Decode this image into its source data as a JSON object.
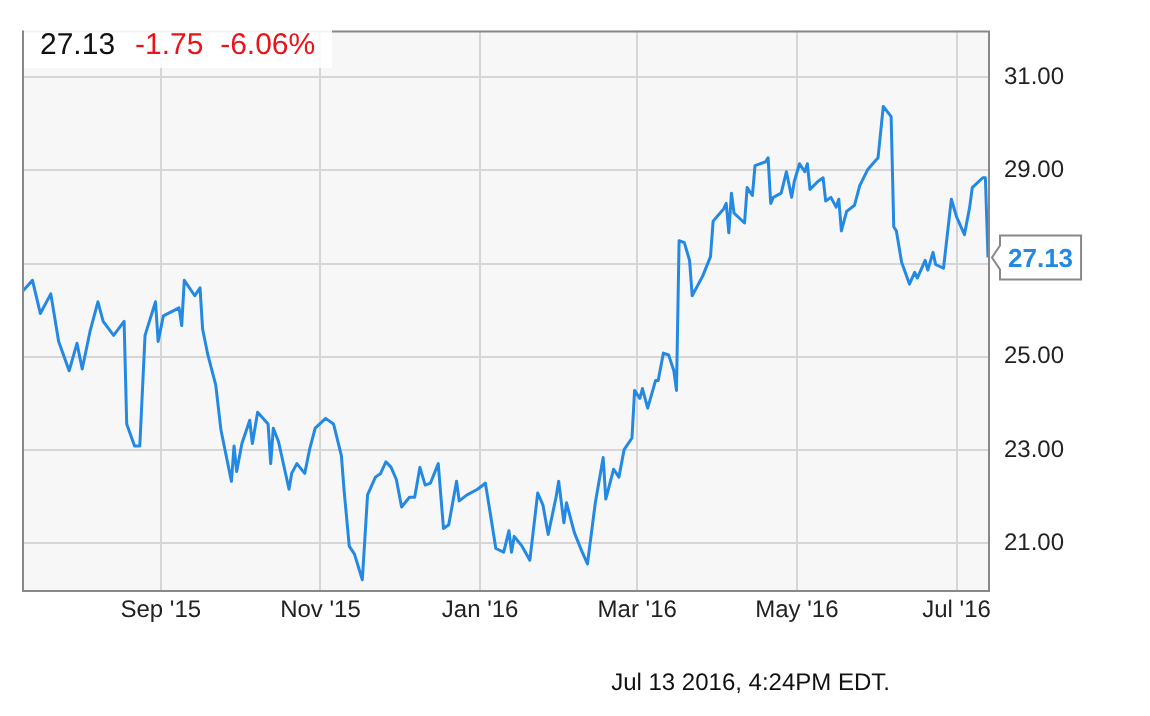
{
  "chart_data": {
    "type": "line",
    "title": "27.13",
    "subtitle": "-1.75  -6.06%",
    "marker": "none",
    "grid": true,
    "x": [
      "2015-07-10",
      "2015-07-14",
      "2015-07-17",
      "2015-07-21",
      "2015-07-24",
      "2015-07-28",
      "2015-07-31",
      "2015-08-02",
      "2015-08-05",
      "2015-08-08",
      "2015-08-10",
      "2015-08-14",
      "2015-08-18",
      "2015-08-19",
      "2015-08-22",
      "2015-08-24",
      "2015-08-26",
      "2015-08-30",
      "2015-08-31",
      "2015-09-02",
      "2015-09-08",
      "2015-09-09",
      "2015-09-10",
      "2015-09-14",
      "2015-09-16",
      "2015-09-17",
      "2015-09-19",
      "2015-09-22",
      "2015-09-24",
      "2015-09-28",
      "2015-09-29",
      "2015-09-30",
      "2015-10-02",
      "2015-10-05",
      "2015-10-06",
      "2015-10-08",
      "2015-10-12",
      "2015-10-13",
      "2015-10-14",
      "2015-10-16",
      "2015-10-20",
      "2015-10-21",
      "2015-10-23",
      "2015-10-26",
      "2015-10-28",
      "2015-10-30",
      "2015-11-03",
      "2015-11-06",
      "2015-11-09",
      "2015-11-10",
      "2015-11-12",
      "2015-11-14",
      "2015-11-17",
      "2015-11-19",
      "2015-11-22",
      "2015-11-24",
      "2015-11-26",
      "2015-11-28",
      "2015-11-30",
      "2015-12-02",
      "2015-12-05",
      "2015-12-07",
      "2015-12-09",
      "2015-12-11",
      "2015-12-13",
      "2015-12-16",
      "2015-12-18",
      "2015-12-20",
      "2015-12-23",
      "2015-12-24",
      "2015-12-27",
      "2015-12-31",
      "2016-01-03",
      "2016-01-04",
      "2016-01-07",
      "2016-01-10",
      "2016-01-12",
      "2016-01-13",
      "2016-01-14",
      "2016-01-17",
      "2016-01-20",
      "2016-01-23",
      "2016-01-25",
      "2016-01-27",
      "2016-01-30",
      "2016-01-31",
      "2016-02-02",
      "2016-02-03",
      "2016-02-05",
      "2016-02-06",
      "2016-02-09",
      "2016-02-11",
      "2016-02-14",
      "2016-02-17",
      "2016-02-18",
      "2016-02-21",
      "2016-02-23",
      "2016-02-25",
      "2016-02-28",
      "2016-02-29",
      "2016-03-02",
      "2016-03-03",
      "2016-03-05",
      "2016-03-08",
      "2016-03-09",
      "2016-03-11",
      "2016-03-13",
      "2016-03-15",
      "2016-03-16",
      "2016-03-17",
      "2016-03-19",
      "2016-03-21",
      "2016-03-22",
      "2016-03-26",
      "2016-03-29",
      "2016-03-30",
      "2016-04-03",
      "2016-04-04",
      "2016-04-05",
      "2016-04-06",
      "2016-04-07",
      "2016-04-11",
      "2016-04-12",
      "2016-04-14",
      "2016-04-15",
      "2016-04-19",
      "2016-04-20",
      "2016-04-21",
      "2016-04-22",
      "2016-04-25",
      "2016-04-27",
      "2016-04-29",
      "2016-04-30",
      "2016-05-02",
      "2016-05-04",
      "2016-05-05",
      "2016-05-06",
      "2016-05-09",
      "2016-05-11",
      "2016-05-12",
      "2016-05-14",
      "2016-05-16",
      "2016-05-17",
      "2016-05-18",
      "2016-05-20",
      "2016-05-23",
      "2016-05-25",
      "2016-05-28",
      "2016-06-01",
      "2016-06-03",
      "2016-06-06",
      "2016-06-07",
      "2016-06-08",
      "2016-06-10",
      "2016-06-13",
      "2016-06-15",
      "2016-06-16",
      "2016-06-19",
      "2016-06-20",
      "2016-06-22",
      "2016-06-23",
      "2016-06-26",
      "2016-06-29",
      "2016-07-01",
      "2016-07-04",
      "2016-07-06",
      "2016-07-07",
      "2016-07-11",
      "2016-07-12",
      "2016-07-13"
    ],
    "series": [
      {
        "color": "#2389e3",
        "values": [
          26.39,
          26.64,
          25.93,
          26.35,
          25.33,
          24.7,
          25.29,
          24.74,
          25.55,
          26.18,
          25.76,
          25.46,
          25.76,
          23.56,
          23.09,
          23.09,
          25.46,
          26.18,
          25.33,
          25.88,
          26.05,
          25.67,
          26.64,
          26.31,
          26.48,
          25.59,
          25.04,
          24.4,
          23.43,
          22.33,
          23.09,
          22.54,
          23.14,
          23.64,
          23.14,
          23.81,
          23.56,
          22.71,
          23.47,
          23.18,
          22.16,
          22.5,
          22.71,
          22.5,
          23.05,
          23.47,
          23.68,
          23.56,
          22.88,
          22.16,
          20.94,
          20.77,
          20.22,
          22.04,
          22.42,
          22.5,
          22.75,
          22.63,
          22.37,
          21.78,
          21.99,
          21.99,
          22.63,
          22.25,
          22.29,
          22.71,
          21.32,
          21.4,
          22.33,
          21.91,
          22.04,
          22.16,
          22.29,
          21.95,
          20.89,
          20.81,
          21.27,
          20.81,
          21.15,
          20.94,
          20.64,
          22.08,
          21.82,
          21.19,
          21.99,
          22.33,
          21.44,
          21.87,
          21.44,
          21.23,
          20.81,
          20.56,
          21.87,
          22.84,
          21.95,
          22.59,
          22.42,
          23.01,
          23.26,
          24.28,
          24.11,
          24.32,
          23.9,
          24.49,
          24.49,
          25.08,
          25.04,
          24.7,
          24.28,
          27.49,
          27.45,
          27.07,
          26.31,
          26.73,
          27.15,
          27.91,
          28.17,
          28.29,
          27.66,
          28.51,
          28.08,
          27.87,
          28.63,
          28.46,
          29.1,
          29.18,
          29.27,
          28.29,
          28.42,
          28.51,
          28.97,
          28.42,
          28.76,
          29.14,
          28.97,
          29.14,
          28.59,
          28.76,
          28.84,
          28.34,
          28.42,
          28.21,
          28.38,
          27.7,
          28.12,
          28.25,
          28.67,
          29.01,
          29.27,
          30.37,
          30.15,
          27.79,
          27.7,
          27.03,
          26.56,
          26.81,
          26.69,
          27.07,
          26.86,
          27.24,
          26.98,
          26.9,
          28.38,
          28.0,
          27.62,
          28.21,
          28.63,
          28.84,
          28.84,
          27.13
        ]
      }
    ],
    "xlim": [
      "2015-07-10",
      "2016-07-13"
    ],
    "xticks": [
      {
        "value": "2015-09-01",
        "label": "Sep '15"
      },
      {
        "value": "2015-11-01",
        "label": "Nov '15"
      },
      {
        "value": "2016-01-01",
        "label": "Jan '16"
      },
      {
        "value": "2016-03-01",
        "label": "Mar '16"
      },
      {
        "value": "2016-05-01",
        "label": "May '16"
      },
      {
        "value": "2016-07-01",
        "label": "Jul '16"
      }
    ],
    "ylim": [
      20,
      32
    ],
    "yticks": [
      {
        "value": 21,
        "label": "21.00"
      },
      {
        "value": 23,
        "label": "23.00"
      },
      {
        "value": 25,
        "label": "25.00"
      },
      {
        "value": 27,
        "label": null
      },
      {
        "value": 29,
        "label": "29.00"
      },
      {
        "value": 31,
        "label": "31.00"
      }
    ],
    "annotations": [
      {
        "text": "27.13",
        "x": "2016-07-13",
        "y": 27.13
      },
      "Jul 13 2016, 4:24PM EDT."
    ]
  }
}
